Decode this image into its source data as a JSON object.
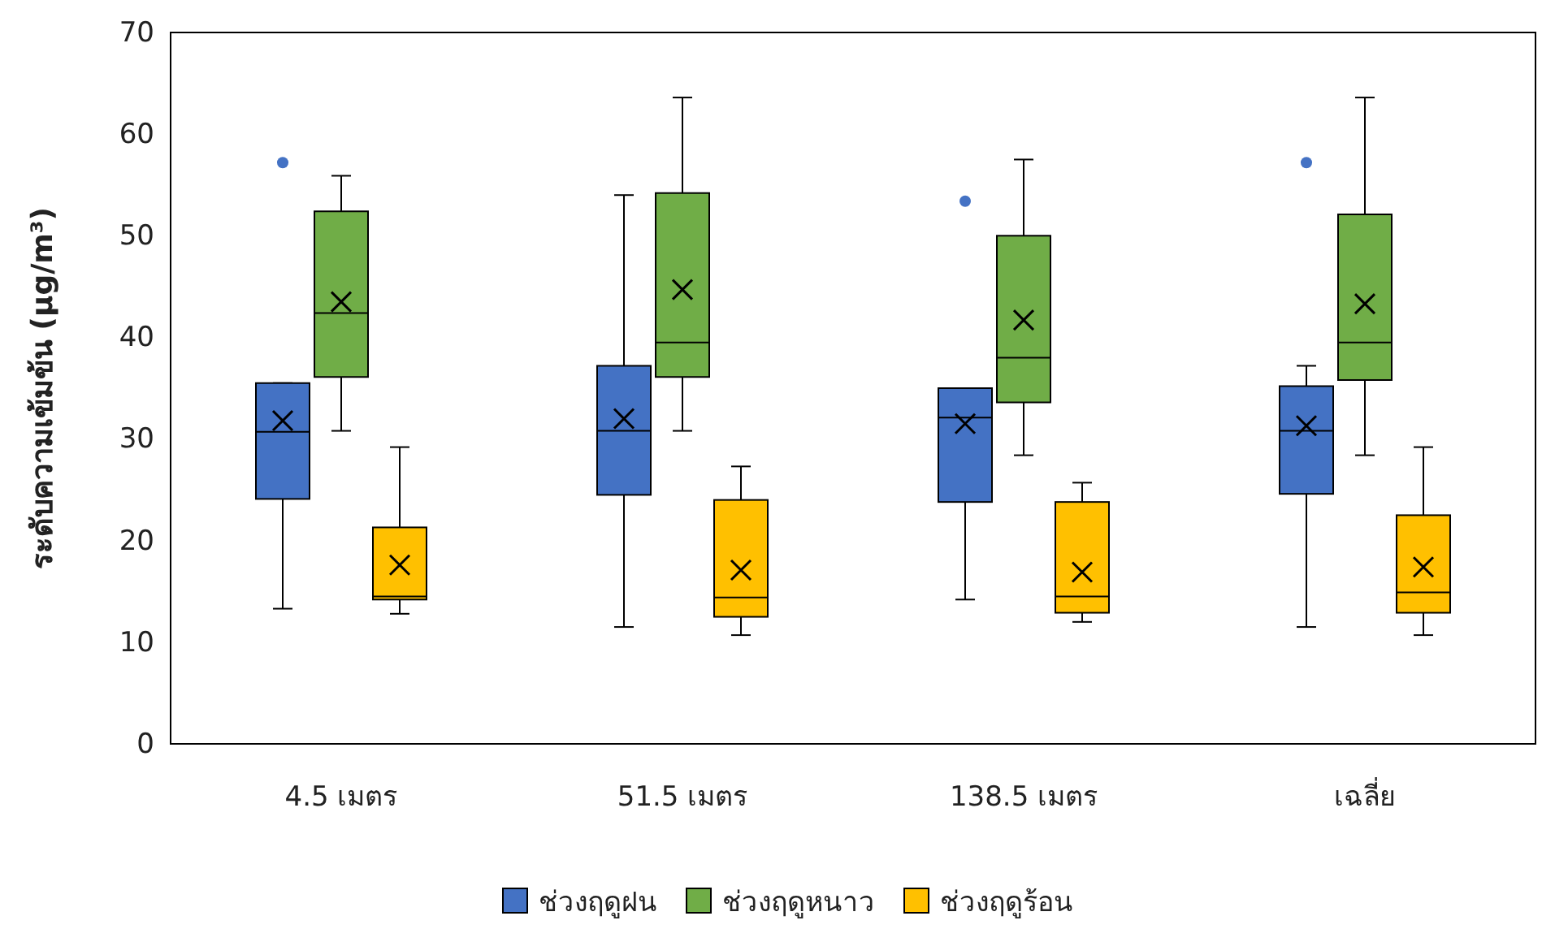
{
  "chart_data": {
    "type": "box",
    "ylabel": "ระดับความเข้มข้น (µg/m³)",
    "categories": [
      "4.5 เมตร",
      "51.5 เมตร",
      "138.5 เมตร",
      "เฉลี่ย"
    ],
    "ylim": [
      0,
      70
    ],
    "yticks": [
      0,
      10,
      20,
      30,
      40,
      50,
      60,
      70
    ],
    "grid": false,
    "legend": "bottom",
    "marker": "cross",
    "series": [
      {
        "name": "ช่วงฤดูฝน",
        "color": "#4472c4",
        "boxes": [
          {
            "low": 13.3,
            "q1": 24.1,
            "median": 30.7,
            "q3": 35.5,
            "high": 35.5,
            "mean": 31.8,
            "outliers": [
              57.2
            ]
          },
          {
            "low": 11.5,
            "q1": 24.5,
            "median": 30.8,
            "q3": 37.2,
            "high": 54,
            "mean": 32
          },
          {
            "low": 14.2,
            "q1": 23.8,
            "median": 32.1,
            "q3": 35,
            "high": 35,
            "mean": 31.5,
            "outliers": [
              53.4
            ]
          },
          {
            "low": 11.5,
            "q1": 24.6,
            "median": 30.8,
            "q3": 35.2,
            "high": 37.2,
            "mean": 31.3,
            "outliers": [
              57.2
            ]
          }
        ]
      },
      {
        "name": "ช่วงฤดูหนาว",
        "color": "#70ad47",
        "boxes": [
          {
            "low": 30.8,
            "q1": 36.1,
            "median": 42.4,
            "q3": 52.4,
            "high": 55.9,
            "mean": 43.5
          },
          {
            "low": 30.8,
            "q1": 36.1,
            "median": 39.5,
            "q3": 54.2,
            "high": 63.6,
            "mean": 44.7
          },
          {
            "low": 28.4,
            "q1": 33.6,
            "median": 38,
            "q3": 50,
            "high": 57.5,
            "mean": 41.7
          },
          {
            "low": 28.4,
            "q1": 35.8,
            "median": 39.5,
            "q3": 52.1,
            "high": 63.6,
            "mean": 43.3
          }
        ]
      },
      {
        "name": "ช่วงฤดูร้อน",
        "color": "#ffc000",
        "boxes": [
          {
            "low": 12.8,
            "q1": 14.2,
            "median": 14.5,
            "q3": 21.3,
            "high": 29.2,
            "mean": 17.6
          },
          {
            "low": 10.7,
            "q1": 12.5,
            "median": 14.4,
            "q3": 24,
            "high": 27.3,
            "mean": 17.1
          },
          {
            "low": 12,
            "q1": 12.9,
            "median": 14.5,
            "q3": 23.8,
            "high": 25.7,
            "mean": 16.9
          },
          {
            "low": 10.7,
            "q1": 12.9,
            "median": 14.9,
            "q3": 22.5,
            "high": 29.2,
            "mean": 17.4
          }
        ]
      }
    ]
  }
}
